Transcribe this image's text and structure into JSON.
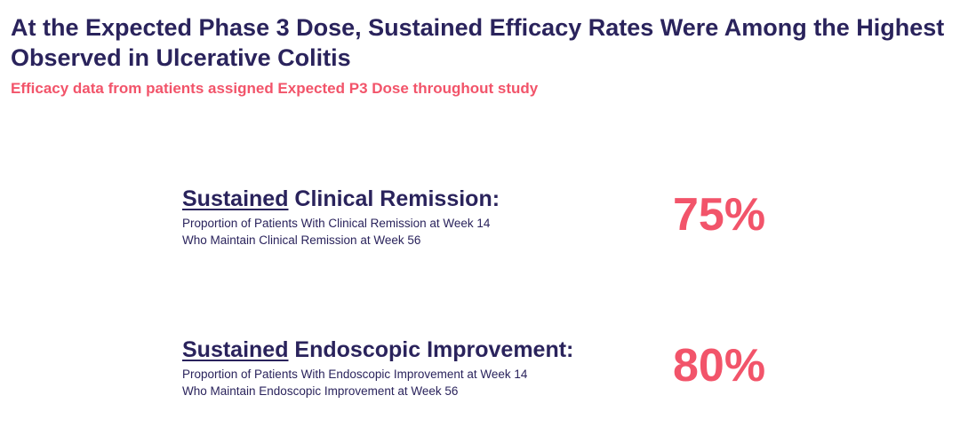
{
  "title": "At the Expected Phase 3 Dose, Sustained Efficacy Rates Were Among the Highest Observed in Ulcerative Colitis",
  "subtitle": "Efficacy data from patients assigned Expected P3 Dose throughout study",
  "metrics": [
    {
      "heading_emphasis": "Sustained",
      "heading_rest": " Clinical Remission:",
      "desc_line1": "Proportion of Patients With Clinical Remission at Week 14",
      "desc_line2": "Who Maintain Clinical Remission at Week 56",
      "value": "75%"
    },
    {
      "heading_emphasis": "Sustained",
      "heading_rest": " Endoscopic Improvement:",
      "desc_line1": "Proportion of Patients With Endoscopic Improvement at Week 14",
      "desc_line2": "Who Maintain Endoscopic Improvement at Week 56",
      "value": "80%"
    }
  ],
  "colors": {
    "navy": "#2a235c",
    "coral": "#f2546a"
  }
}
